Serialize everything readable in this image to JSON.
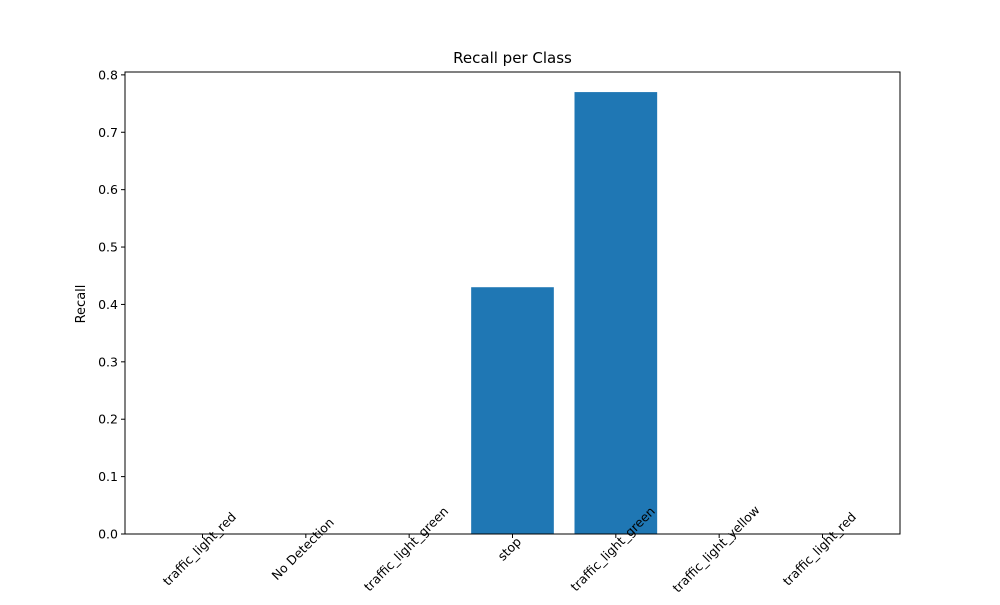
{
  "chart_data": {
    "type": "bar",
    "title": "Recall per Class",
    "xlabel": "",
    "ylabel": "Recall",
    "categories": [
      "traffic_light_red",
      "No Detection",
      "traffic_light_green",
      "stop",
      "traffic_light_green",
      "traffic_light_yellow",
      "traffic_light_red"
    ],
    "values": [
      0,
      0,
      0,
      0.43,
      0.77,
      0,
      0
    ],
    "ylim": [
      0,
      0.805
    ],
    "yticks": [
      "0.0",
      "0.1",
      "0.2",
      "0.3",
      "0.4",
      "0.5",
      "0.6",
      "0.7",
      "0.8"
    ],
    "grid": false,
    "bar_color": "#1f77b4"
  }
}
